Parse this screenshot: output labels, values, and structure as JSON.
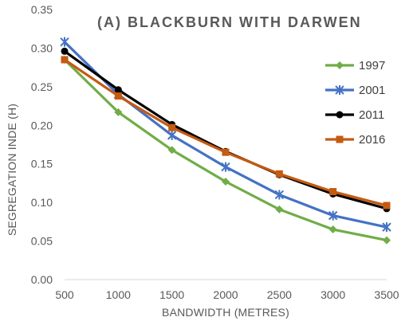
{
  "chart_data": {
    "type": "line",
    "title": "(A) BLACKBURN WITH DARWEN",
    "xlabel": "BANDWIDTH (METRES)",
    "ylabel": "SEGREGATION INDE (H)",
    "x": [
      500,
      1000,
      1500,
      2000,
      2500,
      3000,
      3500
    ],
    "x_ticks": [
      "500",
      "1000",
      "1500",
      "2000",
      "2500",
      "3000",
      "3500"
    ],
    "ylim": [
      0,
      0.35
    ],
    "y_ticks": [
      "0.00",
      "0.05",
      "0.10",
      "0.15",
      "0.20",
      "0.25",
      "0.30",
      "0.35"
    ],
    "grid": false,
    "legend_position": "right",
    "series": [
      {
        "name": "1997",
        "color": "#70AD47",
        "marker": "diamond",
        "values": [
          0.285,
          0.217,
          0.168,
          0.127,
          0.091,
          0.065,
          0.051
        ]
      },
      {
        "name": "2001",
        "color": "#4472C4",
        "marker": "asterisk",
        "values": [
          0.308,
          0.24,
          0.187,
          0.146,
          0.11,
          0.083,
          0.068
        ]
      },
      {
        "name": "2011",
        "color": "#000000",
        "marker": "circle",
        "values": [
          0.296,
          0.246,
          0.201,
          0.166,
          0.136,
          0.111,
          0.092
        ]
      },
      {
        "name": "2016",
        "color": "#C55A11",
        "marker": "square",
        "values": [
          0.285,
          0.238,
          0.197,
          0.165,
          0.137,
          0.114,
          0.096
        ]
      }
    ]
  }
}
